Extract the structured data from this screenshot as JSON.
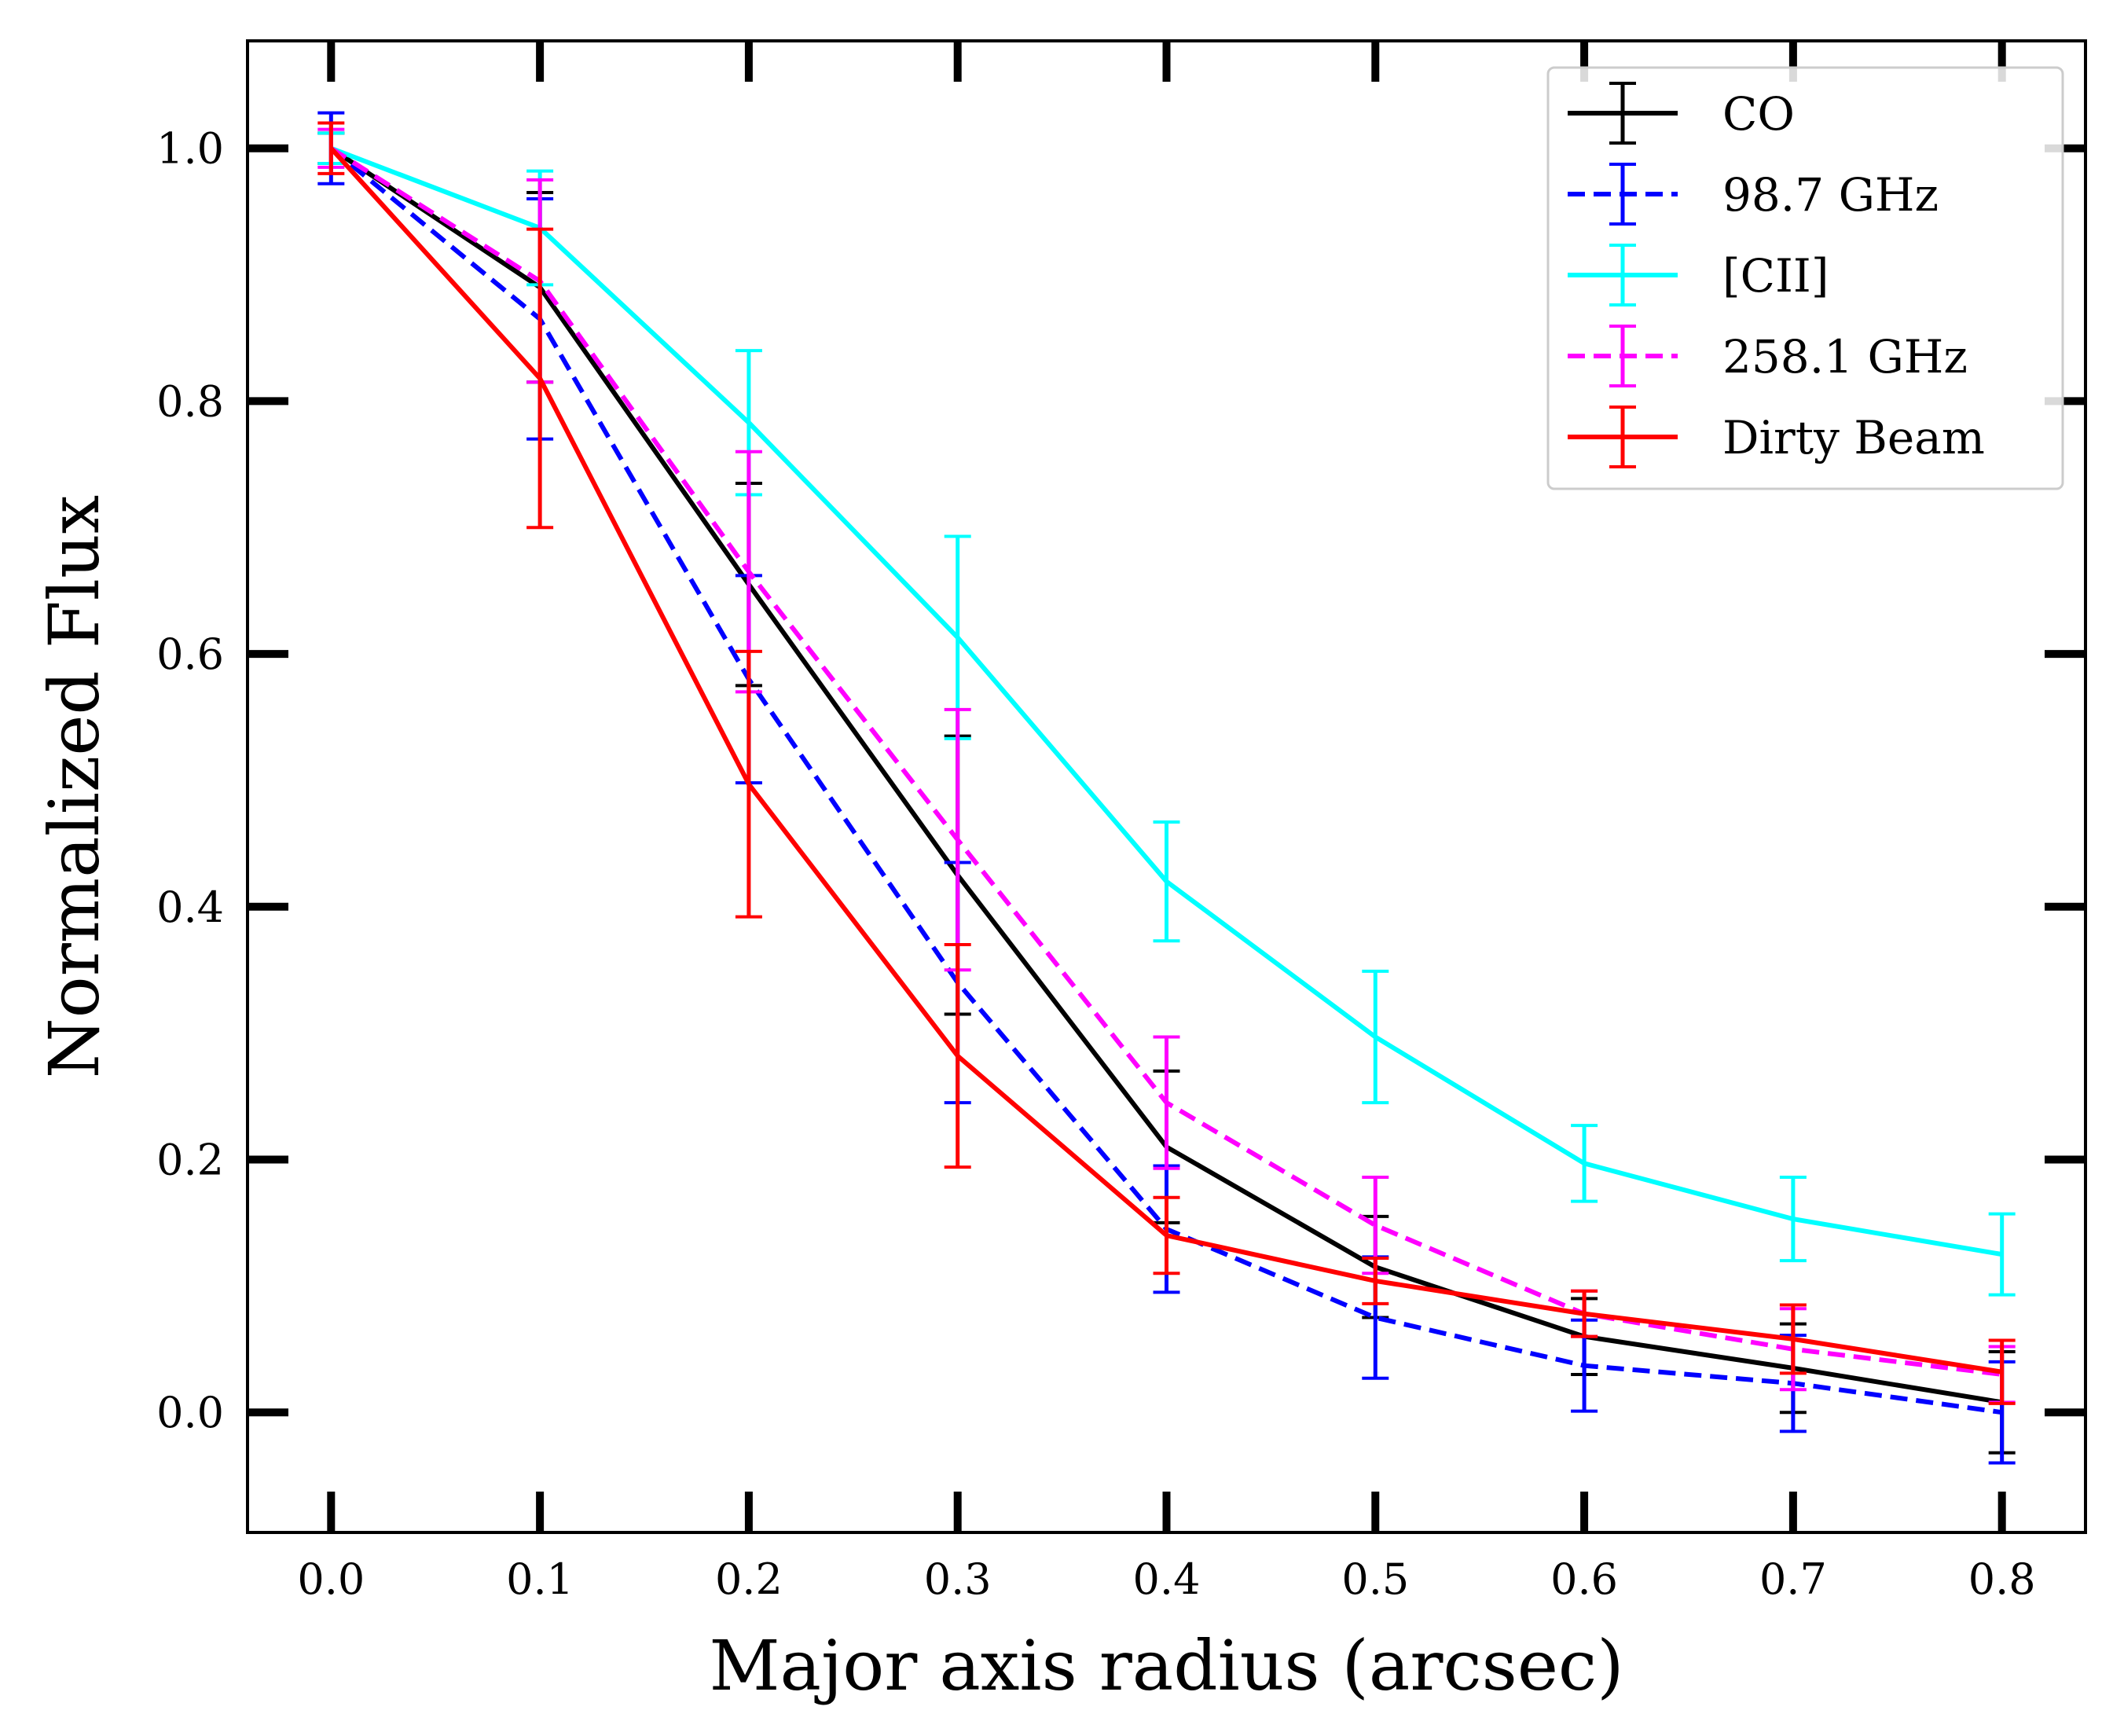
{
  "chart_data": {
    "type": "line",
    "xlabel": "Major axis radius (arcsec)",
    "ylabel": "Normalized Flux",
    "xlim": [
      -0.04,
      0.84
    ],
    "ylim": [
      -0.095,
      1.085
    ],
    "xticks": [
      "0.0",
      "0.1",
      "0.2",
      "0.3",
      "0.4",
      "0.5",
      "0.6",
      "0.7",
      "0.8"
    ],
    "yticks": [
      "0.0",
      "0.2",
      "0.4",
      "0.6",
      "0.8",
      "1.0"
    ],
    "grid": false,
    "legend_position": "top-right",
    "x": [
      0.0,
      0.1,
      0.2,
      0.3,
      0.4,
      0.5,
      0.6,
      0.7,
      0.8
    ],
    "series": [
      {
        "name": "CO",
        "color": "#000000",
        "dashed": false,
        "values": [
          1.0,
          0.89,
          0.655,
          0.425,
          0.21,
          0.115,
          0.06,
          0.035,
          0.008
        ],
        "errors": [
          0.012,
          0.075,
          0.08,
          0.11,
          0.06,
          0.04,
          0.03,
          0.035,
          0.04
        ]
      },
      {
        "name": "98.7 GHz",
        "color": "#0000ff",
        "dashed": true,
        "values": [
          1.0,
          0.865,
          0.58,
          0.34,
          0.145,
          0.075,
          0.037,
          0.023,
          0.0
        ],
        "errors": [
          0.028,
          0.095,
          0.082,
          0.095,
          0.05,
          0.048,
          0.036,
          0.038,
          0.04
        ]
      },
      {
        "name": "[CII]",
        "color": "#00ffff",
        "dashed": false,
        "values": [
          1.0,
          0.937,
          0.783,
          0.613,
          0.42,
          0.297,
          0.197,
          0.153,
          0.125
        ],
        "errors": [
          0.012,
          0.045,
          0.057,
          0.08,
          0.047,
          0.052,
          0.03,
          0.033,
          0.032
        ]
      },
      {
        "name": "258.1 GHz",
        "color": "#ff00ff",
        "dashed": true,
        "values": [
          1.0,
          0.895,
          0.665,
          0.453,
          0.245,
          0.148,
          0.078,
          0.05,
          0.03
        ],
        "errors": [
          0.015,
          0.08,
          0.095,
          0.103,
          0.052,
          0.038,
          0.018,
          0.032,
          0.022
        ]
      },
      {
        "name": "Dirty Beam",
        "color": "#ff0000",
        "dashed": false,
        "values": [
          1.0,
          0.818,
          0.497,
          0.282,
          0.14,
          0.104,
          0.078,
          0.058,
          0.032
        ],
        "errors": [
          0.02,
          0.118,
          0.105,
          0.088,
          0.03,
          0.018,
          0.018,
          0.027,
          0.025
        ]
      }
    ]
  }
}
